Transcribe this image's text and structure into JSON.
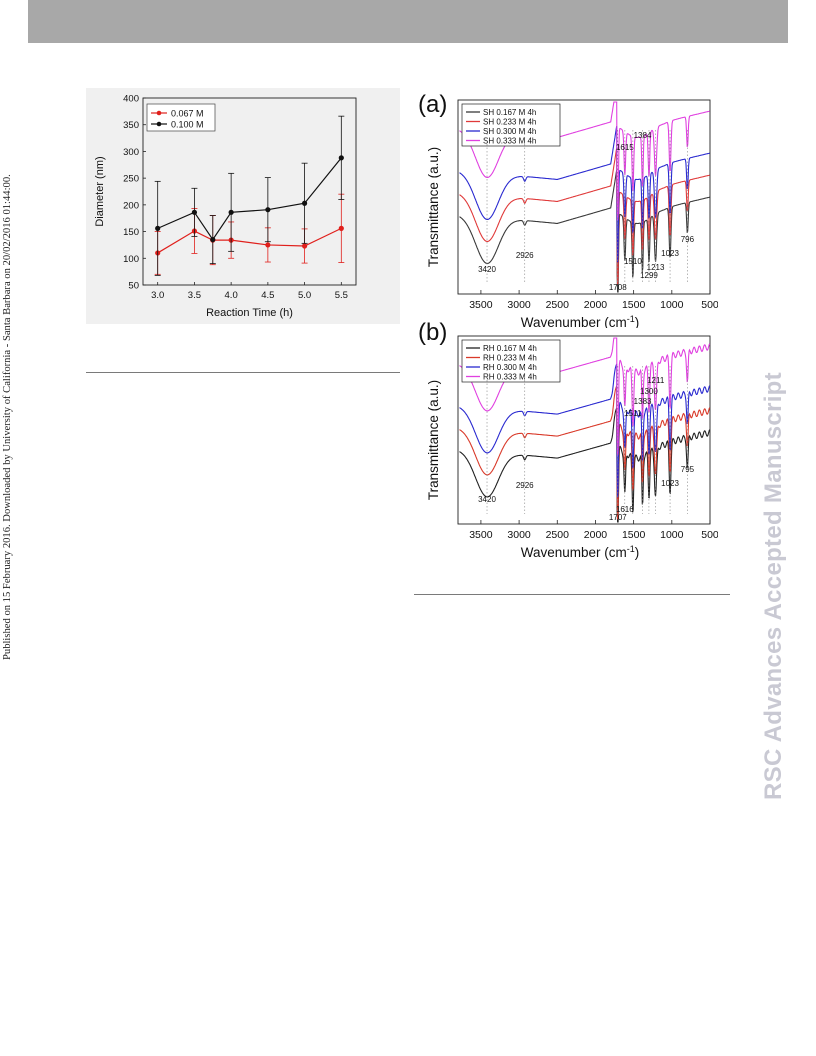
{
  "sidebar_text": "Published on 15 February 2016. Downloaded by University of California - Santa Barbara on 20/02/2016 01:44:00.",
  "watermark": "RSC Advances Accepted Manuscript",
  "chart_data": [
    {
      "type": "line",
      "xlabel": "Reaction Time (h)",
      "ylabel": "Diameter (nm)",
      "xlim": [
        2.8,
        5.7
      ],
      "ylim": [
        50,
        400
      ],
      "xticks": [
        "3.0",
        "3.5",
        "4.0",
        "4.5",
        "5.0",
        "5.5"
      ],
      "yticks": [
        "50",
        "100",
        "150",
        "200",
        "250",
        "300",
        "350",
        "400"
      ],
      "legend": "top-left",
      "series": [
        {
          "name": "0.067 M",
          "color": "#e0201c",
          "x": [
            3.0,
            3.5,
            3.75,
            4.0,
            4.5,
            5.0,
            5.5
          ],
          "y": [
            110,
            151,
            134,
            134,
            125,
            123,
            156
          ],
          "err": [
            40,
            42,
            46,
            34,
            32,
            32,
            64
          ]
        },
        {
          "name": "0.100 M",
          "color": "#111111",
          "x": [
            3.0,
            3.5,
            3.75,
            4.0,
            4.5,
            5.0,
            5.5
          ],
          "y": [
            156,
            186,
            135,
            186,
            191,
            203,
            288
          ],
          "err": [
            88,
            45,
            45,
            73,
            60,
            75,
            78
          ]
        }
      ]
    },
    {
      "type": "line",
      "panel": "(a)",
      "xlabel": "Wavenumber (cm",
      "xlabel_sup": "-1",
      "xlabel_end": ")",
      "ylabel": "Transmittance (a.u.)",
      "xlim": [
        3800,
        500
      ],
      "xticks": [
        "3500",
        "3000",
        "2500",
        "2000",
        "1500",
        "1000",
        "500"
      ],
      "legend": "top-left",
      "series": [
        {
          "name": "SH 0.167 M 4h",
          "color": "#3a3a3a"
        },
        {
          "name": "SH 0.233 M 4h",
          "color": "#e03a3a"
        },
        {
          "name": "SH 0.300 M 4h",
          "color": "#2a2ad0"
        },
        {
          "name": "SH 0.333 M 4h",
          "color": "#e040e0"
        }
      ],
      "annotations": [
        {
          "text": "3420",
          "x": 3420
        },
        {
          "text": "2926",
          "x": 2926
        },
        {
          "text": "1708",
          "x": 1708
        },
        {
          "text": "1615",
          "x": 1615
        },
        {
          "text": "1510",
          "x": 1510
        },
        {
          "text": "1384",
          "x": 1384
        },
        {
          "text": "1299",
          "x": 1299
        },
        {
          "text": "1213",
          "x": 1213
        },
        {
          "text": "1023",
          "x": 1023
        },
        {
          "text": "796",
          "x": 796
        }
      ]
    },
    {
      "type": "line",
      "panel": "(b)",
      "xlabel": "Wavenumber (cm",
      "xlabel_sup": "-1",
      "xlabel_end": ")",
      "ylabel": "Transmittance (a.u.)",
      "xlim": [
        3800,
        500
      ],
      "xticks": [
        "3500",
        "3000",
        "2500",
        "2000",
        "1500",
        "1000",
        "500"
      ],
      "legend": "top-left",
      "series": [
        {
          "name": "RH 0.167 M 4h",
          "color": "#222222"
        },
        {
          "name": "RH 0.233 M 4h",
          "color": "#d93a2a"
        },
        {
          "name": "RH 0.300 M 4h",
          "color": "#2a2ad0"
        },
        {
          "name": "RH 0.333 M 4h",
          "color": "#e040e0"
        }
      ],
      "annotations": [
        {
          "text": "3420",
          "x": 3420
        },
        {
          "text": "2926",
          "x": 2926
        },
        {
          "text": "1707",
          "x": 1707
        },
        {
          "text": "1616",
          "x": 1616
        },
        {
          "text": "1511",
          "x": 1511
        },
        {
          "text": "1383",
          "x": 1383
        },
        {
          "text": "1300",
          "x": 1300
        },
        {
          "text": "1211",
          "x": 1211
        },
        {
          "text": "1023",
          "x": 1023
        },
        {
          "text": "795",
          "x": 795
        }
      ]
    }
  ]
}
